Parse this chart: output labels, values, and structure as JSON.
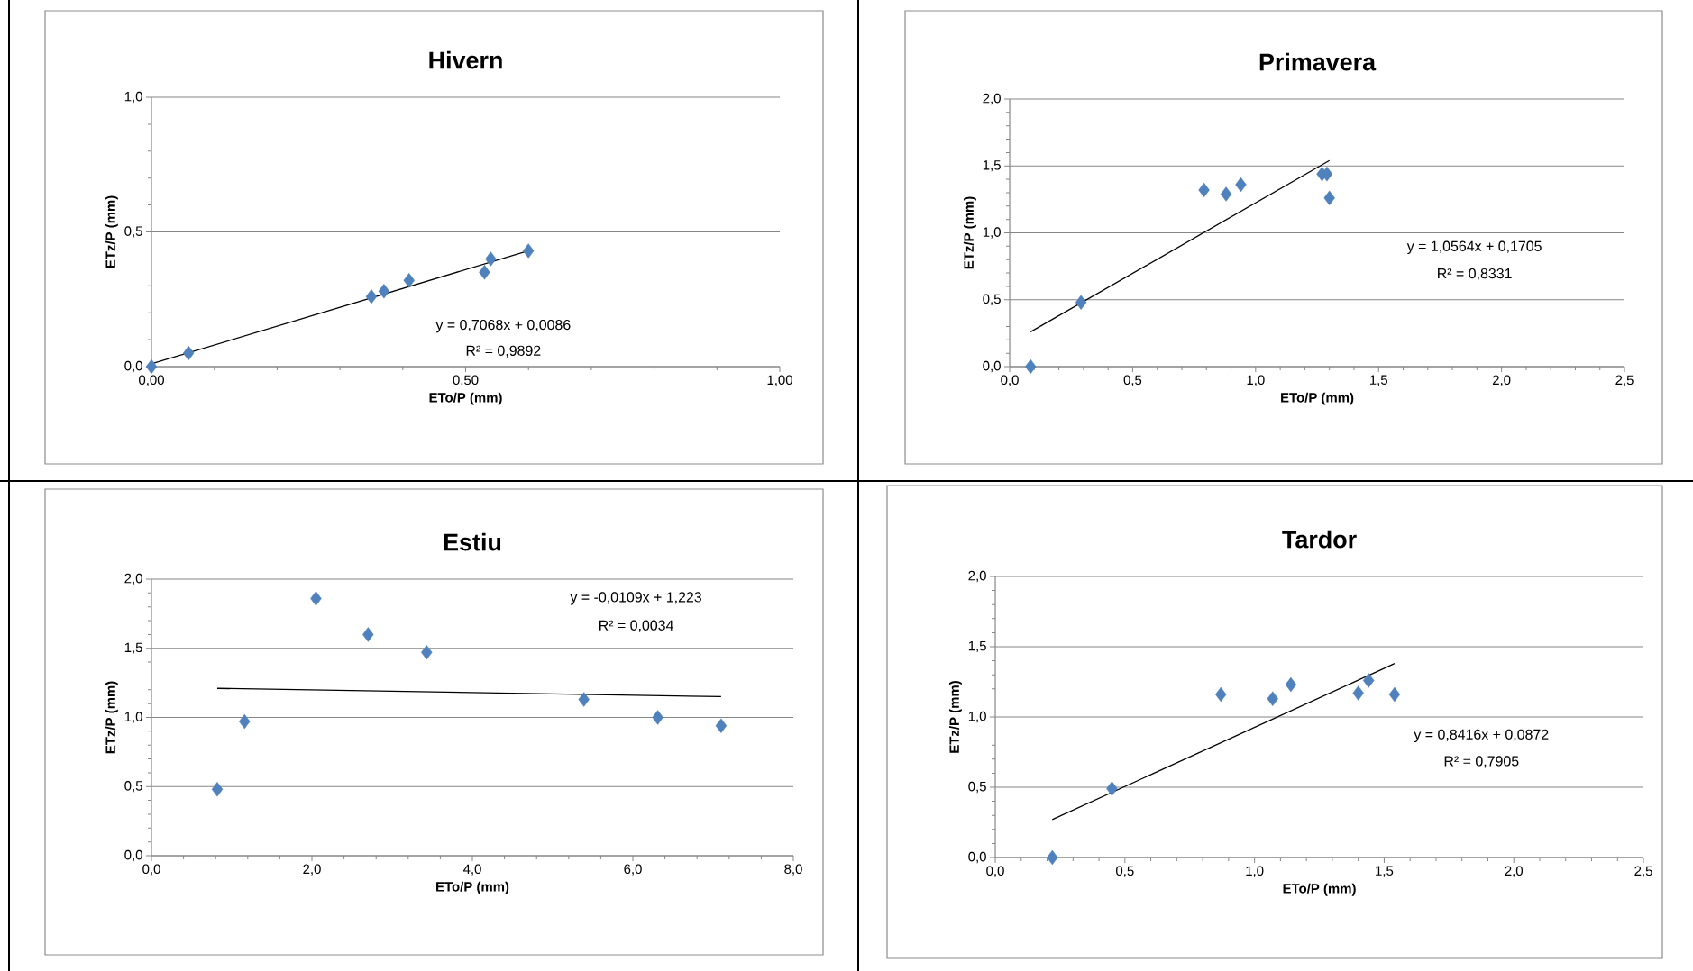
{
  "chart_data": [
    {
      "type": "scatter",
      "title": "Hivern",
      "xlabel": "ETo/P (mm)",
      "ylabel": "ETz/P (mm)",
      "xlim": [
        0,
        1
      ],
      "ylim": [
        0,
        1
      ],
      "xticks": [
        {
          "value": 0,
          "label": "0,00"
        },
        {
          "value": 0.1,
          "label": null
        },
        {
          "value": 0.2,
          "label": null
        },
        {
          "value": 0.3,
          "label": null
        },
        {
          "value": 0.4,
          "label": null
        },
        {
          "value": 0.5,
          "label": "0,50"
        },
        {
          "value": 0.6,
          "label": null
        },
        {
          "value": 0.7,
          "label": null
        },
        {
          "value": 0.8,
          "label": null
        },
        {
          "value": 0.9,
          "label": null
        },
        {
          "value": 1,
          "label": "1,00"
        }
      ],
      "yticks": [
        {
          "value": 0,
          "label": "0,0"
        },
        {
          "value": 0.1,
          "label": null
        },
        {
          "value": 0.2,
          "label": null
        },
        {
          "value": 0.3,
          "label": null
        },
        {
          "value": 0.4,
          "label": null
        },
        {
          "value": 0.5,
          "label": "0,5"
        },
        {
          "value": 0.6,
          "label": null
        },
        {
          "value": 0.7,
          "label": null
        },
        {
          "value": 0.8,
          "label": null
        },
        {
          "value": 0.9,
          "label": null
        },
        {
          "value": 1,
          "label": "1,0"
        }
      ],
      "grid": "y",
      "marker": "diamond",
      "series": [
        {
          "x": [
            0,
            0.059,
            0.35,
            0.37,
            0.41,
            0.53,
            0.54,
            0.6
          ],
          "values": [
            0,
            0.05,
            0.26,
            0.28,
            0.32,
            0.35,
            0.4,
            0.43
          ],
          "color": "#4f81bd"
        },
        {
          "type": "line",
          "marker": "none",
          "x": [
            0,
            0.6
          ],
          "values": [
            0.01,
            0.43
          ],
          "color": "#000000"
        }
      ],
      "annotations": [
        "y = 0,7068x + 0,0086",
        "R² = 0,9892"
      ]
    },
    {
      "type": "scatter",
      "title": "Primavera",
      "xlabel": "ETo/P (mm)",
      "ylabel": "ETz/P (mm)",
      "xlim": [
        0,
        2.5
      ],
      "ylim": [
        0,
        2
      ],
      "xticks": [
        {
          "value": 0,
          "label": "0,0"
        },
        {
          "value": 0.1,
          "label": null
        },
        {
          "value": 0.2,
          "label": null
        },
        {
          "value": 0.3,
          "label": null
        },
        {
          "value": 0.4,
          "label": null
        },
        {
          "value": 0.5,
          "label": "0,5"
        },
        {
          "value": 0.6,
          "label": null
        },
        {
          "value": 0.7,
          "label": null
        },
        {
          "value": 0.8,
          "label": null
        },
        {
          "value": 0.9,
          "label": null
        },
        {
          "value": 1,
          "label": "1,0"
        },
        {
          "value": 1.1,
          "label": null
        },
        {
          "value": 1.2,
          "label": null
        },
        {
          "value": 1.3,
          "label": null
        },
        {
          "value": 1.4,
          "label": null
        },
        {
          "value": 1.5,
          "label": "1,5"
        },
        {
          "value": 1.6,
          "label": null
        },
        {
          "value": 1.7,
          "label": null
        },
        {
          "value": 1.8,
          "label": null
        },
        {
          "value": 1.9,
          "label": null
        },
        {
          "value": 2,
          "label": "2,0"
        },
        {
          "value": 2.1,
          "label": null
        },
        {
          "value": 2.2,
          "label": null
        },
        {
          "value": 2.3,
          "label": null
        },
        {
          "value": 2.4,
          "label": null
        },
        {
          "value": 2.5,
          "label": "2,5"
        }
      ],
      "yticks": [
        {
          "value": 0,
          "label": "0,0"
        },
        {
          "value": 0.1,
          "label": null
        },
        {
          "value": 0.2,
          "label": null
        },
        {
          "value": 0.3,
          "label": null
        },
        {
          "value": 0.4,
          "label": null
        },
        {
          "value": 0.5,
          "label": "0,5"
        },
        {
          "value": 0.6,
          "label": null
        },
        {
          "value": 0.7,
          "label": null
        },
        {
          "value": 0.8,
          "label": null
        },
        {
          "value": 0.9,
          "label": null
        },
        {
          "value": 1,
          "label": "1,0"
        },
        {
          "value": 1.1,
          "label": null
        },
        {
          "value": 1.2,
          "label": null
        },
        {
          "value": 1.3,
          "label": null
        },
        {
          "value": 1.4,
          "label": null
        },
        {
          "value": 1.5,
          "label": "1,5"
        },
        {
          "value": 1.6,
          "label": null
        },
        {
          "value": 1.7,
          "label": null
        },
        {
          "value": 1.8,
          "label": null
        },
        {
          "value": 1.9,
          "label": null
        },
        {
          "value": 2,
          "label": "2,0"
        }
      ],
      "grid": "y",
      "marker": "diamond",
      "series": [
        {
          "x": [
            0.085,
            0.29,
            0.79,
            0.88,
            0.94,
            1.27,
            1.29,
            1.3
          ],
          "values": [
            0,
            0.48,
            1.32,
            1.29,
            1.36,
            1.44,
            1.44,
            1.26
          ],
          "color": "#4f81bd"
        },
        {
          "type": "line",
          "marker": "none",
          "x": [
            0.085,
            1.3
          ],
          "values": [
            0.26,
            1.54
          ],
          "color": "#000000"
        }
      ],
      "annotations": [
        "y = 1,0564x + 0,1705",
        "R² = 0,8331"
      ]
    },
    {
      "type": "scatter",
      "title": "Estiu",
      "xlabel": "ETo/P (mm)",
      "ylabel": "ETz/P (mm)",
      "xlim": [
        0,
        8
      ],
      "ylim": [
        0,
        2
      ],
      "xticks": [
        {
          "value": 0,
          "label": "0,0"
        },
        {
          "value": 0.4,
          "label": null
        },
        {
          "value": 0.8,
          "label": null
        },
        {
          "value": 1.2,
          "label": null
        },
        {
          "value": 1.6,
          "label": null
        },
        {
          "value": 2,
          "label": "2,0"
        },
        {
          "value": 2.4,
          "label": null
        },
        {
          "value": 2.8,
          "label": null
        },
        {
          "value": 3.2,
          "label": null
        },
        {
          "value": 3.6,
          "label": null
        },
        {
          "value": 4,
          "label": "4,0"
        },
        {
          "value": 4.4,
          "label": null
        },
        {
          "value": 4.8,
          "label": null
        },
        {
          "value": 5.2,
          "label": null
        },
        {
          "value": 5.6,
          "label": null
        },
        {
          "value": 6,
          "label": "6,0"
        },
        {
          "value": 6.4,
          "label": null
        },
        {
          "value": 6.8,
          "label": null
        },
        {
          "value": 7.2,
          "label": null
        },
        {
          "value": 7.6,
          "label": null
        },
        {
          "value": 8,
          "label": "8,0"
        }
      ],
      "yticks": [
        {
          "value": 0,
          "label": "0,0"
        },
        {
          "value": 0.1,
          "label": null
        },
        {
          "value": 0.2,
          "label": null
        },
        {
          "value": 0.3,
          "label": null
        },
        {
          "value": 0.4,
          "label": null
        },
        {
          "value": 0.5,
          "label": "0,5"
        },
        {
          "value": 0.6,
          "label": null
        },
        {
          "value": 0.7,
          "label": null
        },
        {
          "value": 0.8,
          "label": null
        },
        {
          "value": 0.9,
          "label": null
        },
        {
          "value": 1,
          "label": "1,0"
        },
        {
          "value": 1.1,
          "label": null
        },
        {
          "value": 1.2,
          "label": null
        },
        {
          "value": 1.3,
          "label": null
        },
        {
          "value": 1.4,
          "label": null
        },
        {
          "value": 1.5,
          "label": "1,5"
        },
        {
          "value": 1.6,
          "label": null
        },
        {
          "value": 1.7,
          "label": null
        },
        {
          "value": 1.8,
          "label": null
        },
        {
          "value": 1.9,
          "label": null
        },
        {
          "value": 2,
          "label": "2,0"
        }
      ],
      "grid": "y",
      "marker": "diamond",
      "series": [
        {
          "x": [
            0.82,
            1.16,
            2.05,
            2.7,
            3.43,
            5.39,
            6.31,
            7.1
          ],
          "values": [
            0.48,
            0.97,
            1.86,
            1.6,
            1.47,
            1.13,
            1.0,
            0.94
          ],
          "color": "#4f81bd"
        },
        {
          "type": "line",
          "marker": "none",
          "x": [
            0.82,
            7.1
          ],
          "values": [
            1.21,
            1.15
          ],
          "color": "#000000"
        }
      ],
      "annotations": [
        "y = -0,0109x + 1,223",
        "R² = 0,0034"
      ]
    },
    {
      "type": "scatter",
      "title": "Tardor",
      "xlabel": "ETo/P (mm)",
      "ylabel": "ETz/P (mm)",
      "xlim": [
        0,
        2.5
      ],
      "ylim": [
        0,
        2
      ],
      "xticks": [
        {
          "value": 0,
          "label": "0,0"
        },
        {
          "value": 0.1,
          "label": null
        },
        {
          "value": 0.2,
          "label": null
        },
        {
          "value": 0.3,
          "label": null
        },
        {
          "value": 0.4,
          "label": null
        },
        {
          "value": 0.5,
          "label": "0,5"
        },
        {
          "value": 0.6,
          "label": null
        },
        {
          "value": 0.7,
          "label": null
        },
        {
          "value": 0.8,
          "label": null
        },
        {
          "value": 0.9,
          "label": null
        },
        {
          "value": 1,
          "label": "1,0"
        },
        {
          "value": 1.1,
          "label": null
        },
        {
          "value": 1.2,
          "label": null
        },
        {
          "value": 1.3,
          "label": null
        },
        {
          "value": 1.4,
          "label": null
        },
        {
          "value": 1.5,
          "label": "1,5"
        },
        {
          "value": 1.6,
          "label": null
        },
        {
          "value": 1.7,
          "label": null
        },
        {
          "value": 1.8,
          "label": null
        },
        {
          "value": 1.9,
          "label": null
        },
        {
          "value": 2,
          "label": "2,0"
        },
        {
          "value": 2.1,
          "label": null
        },
        {
          "value": 2.2,
          "label": null
        },
        {
          "value": 2.3,
          "label": null
        },
        {
          "value": 2.4,
          "label": null
        },
        {
          "value": 2.5,
          "label": "2,5"
        }
      ],
      "yticks": [
        {
          "value": 0,
          "label": "0,0"
        },
        {
          "value": 0.1,
          "label": null
        },
        {
          "value": 0.2,
          "label": null
        },
        {
          "value": 0.3,
          "label": null
        },
        {
          "value": 0.4,
          "label": null
        },
        {
          "value": 0.5,
          "label": "0,5"
        },
        {
          "value": 0.6,
          "label": null
        },
        {
          "value": 0.7,
          "label": null
        },
        {
          "value": 0.8,
          "label": null
        },
        {
          "value": 0.9,
          "label": null
        },
        {
          "value": 1,
          "label": "1,0"
        },
        {
          "value": 1.1,
          "label": null
        },
        {
          "value": 1.2,
          "label": null
        },
        {
          "value": 1.3,
          "label": null
        },
        {
          "value": 1.4,
          "label": null
        },
        {
          "value": 1.5,
          "label": "1,5"
        },
        {
          "value": 1.6,
          "label": null
        },
        {
          "value": 1.7,
          "label": null
        },
        {
          "value": 1.8,
          "label": null
        },
        {
          "value": 1.9,
          "label": null
        },
        {
          "value": 2,
          "label": "2,0"
        }
      ],
      "grid": "y",
      "marker": "diamond",
      "series": [
        {
          "x": [
            0.22,
            0.45,
            0.87,
            1.07,
            1.14,
            1.4,
            1.44,
            1.54
          ],
          "values": [
            0,
            0.49,
            1.16,
            1.13,
            1.23,
            1.17,
            1.26,
            1.16
          ],
          "color": "#4f81bd"
        },
        {
          "type": "line",
          "marker": "none",
          "x": [
            0.22,
            1.54
          ],
          "values": [
            0.27,
            1.38
          ],
          "color": "#000000"
        }
      ],
      "annotations": [
        "y = 0,8416x + 0,0872",
        "R² = 0,7905"
      ]
    }
  ]
}
